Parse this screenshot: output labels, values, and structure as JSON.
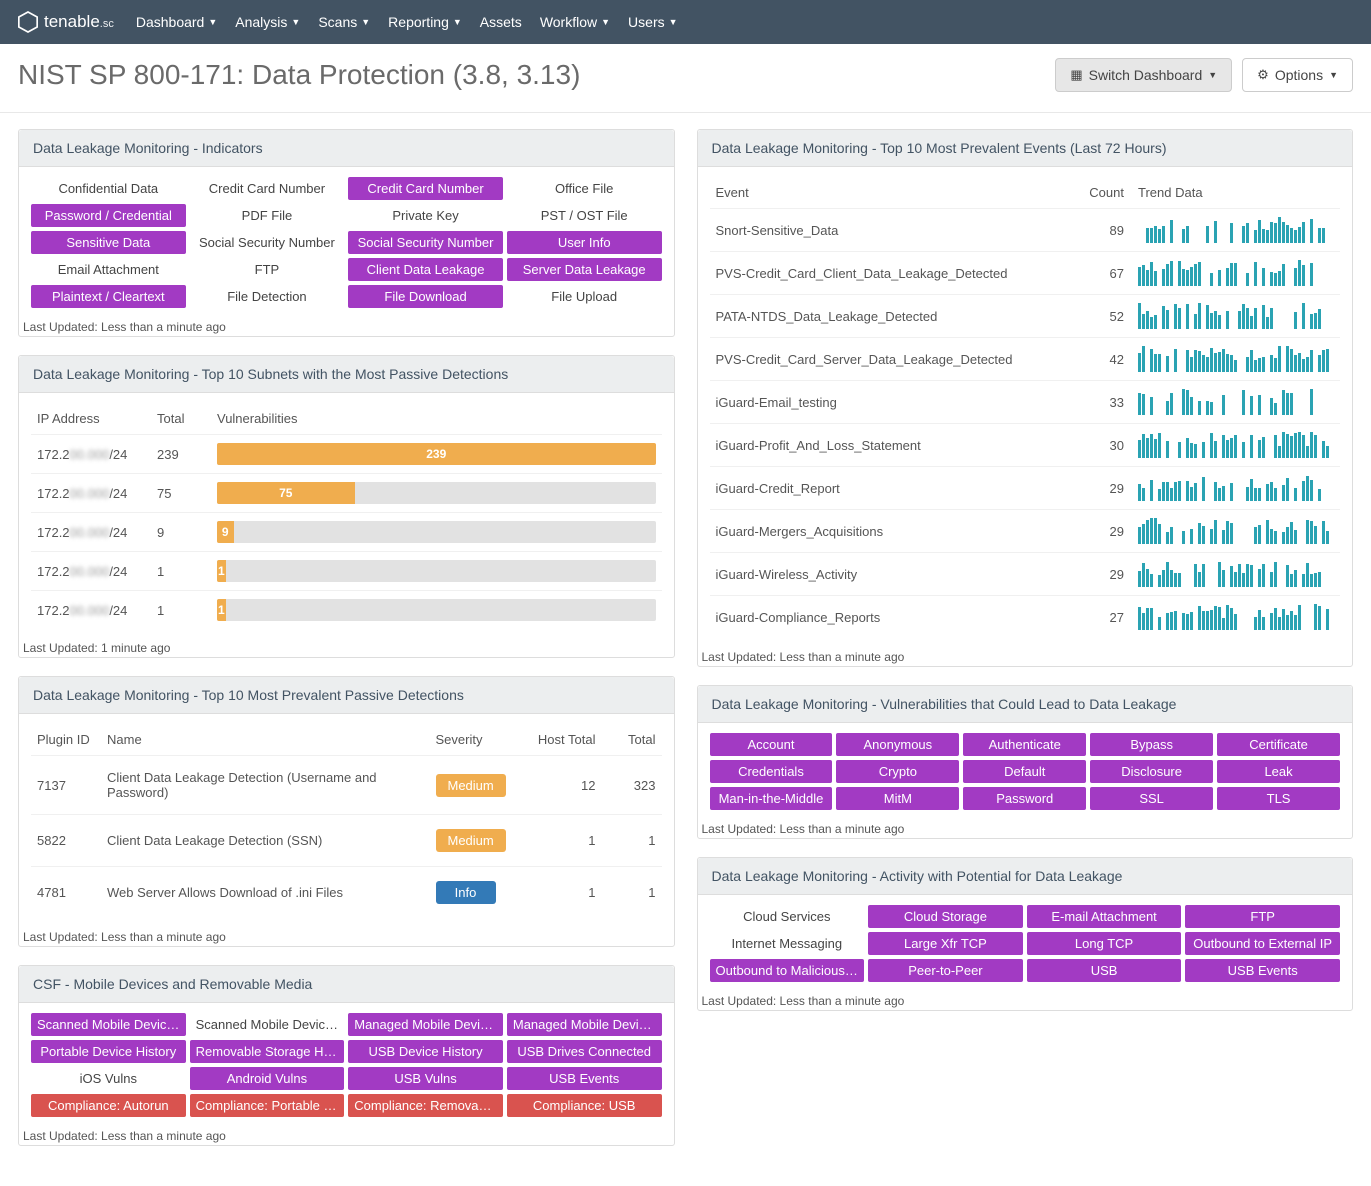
{
  "brand": {
    "name": "tenable",
    "suffix": ".sc"
  },
  "nav": [
    {
      "label": "Dashboard",
      "caret": true
    },
    {
      "label": "Analysis",
      "caret": true
    },
    {
      "label": "Scans",
      "caret": true
    },
    {
      "label": "Reporting",
      "caret": true
    },
    {
      "label": "Assets",
      "caret": false
    },
    {
      "label": "Workflow",
      "caret": true
    },
    {
      "label": "Users",
      "caret": true
    }
  ],
  "page_title": "NIST SP 800-171: Data Protection (3.8, 3.13)",
  "actions": {
    "switch": "Switch Dashboard",
    "options": "Options"
  },
  "colors": {
    "purple": "#a23ac3",
    "red": "#d9534f",
    "orange": "#f0ad4e",
    "blue": "#337ab7",
    "teal": "#2aa3b3",
    "grey_track": "#e2e2e2"
  },
  "panels": {
    "indicators": {
      "title": "Data Leakage Monitoring - Indicators",
      "updated": "Last Updated: Less than a minute ago",
      "cols": 4,
      "cells": [
        {
          "label": "Confidential Data",
          "style": "plain"
        },
        {
          "label": "Credit Card Number",
          "style": "plain"
        },
        {
          "label": "Credit Card Number",
          "style": "pill",
          "color": "#a23ac3"
        },
        {
          "label": "Office File",
          "style": "plain"
        },
        {
          "label": "Password / Credential",
          "style": "pill",
          "color": "#a23ac3"
        },
        {
          "label": "PDF File",
          "style": "plain"
        },
        {
          "label": "Private Key",
          "style": "plain"
        },
        {
          "label": "PST / OST File",
          "style": "plain"
        },
        {
          "label": "Sensitive Data",
          "style": "pill",
          "color": "#a23ac3"
        },
        {
          "label": "Social Security Number",
          "style": "plain"
        },
        {
          "label": "Social Security Number",
          "style": "pill",
          "color": "#a23ac3"
        },
        {
          "label": "User Info",
          "style": "pill",
          "color": "#a23ac3"
        },
        {
          "label": "Email Attachment",
          "style": "plain"
        },
        {
          "label": "FTP",
          "style": "plain"
        },
        {
          "label": "Client Data Leakage",
          "style": "pill",
          "color": "#a23ac3"
        },
        {
          "label": "Server Data Leakage",
          "style": "pill",
          "color": "#a23ac3"
        },
        {
          "label": "Plaintext / Cleartext",
          "style": "pill",
          "color": "#a23ac3"
        },
        {
          "label": "File Detection",
          "style": "plain"
        },
        {
          "label": "File Download",
          "style": "pill",
          "color": "#a23ac3"
        },
        {
          "label": "File Upload",
          "style": "plain"
        }
      ]
    },
    "subnets": {
      "title": "Data Leakage Monitoring - Top 10 Subnets with the Most Passive Detections",
      "updated": "Last Updated: 1 minute ago",
      "headers": {
        "ip": "IP Address",
        "total": "Total",
        "vuln": "Vulnerabilities"
      },
      "max": 239,
      "rows": [
        {
          "ip_prefix": "172.2",
          "ip_hidden": "00.000",
          "ip_suffix": "/24",
          "total": 239
        },
        {
          "ip_prefix": "172.2",
          "ip_hidden": "00.000",
          "ip_suffix": "/24",
          "total": 75
        },
        {
          "ip_prefix": "172.2",
          "ip_hidden": "00.000",
          "ip_suffix": "/24",
          "total": 9
        },
        {
          "ip_prefix": "172.2",
          "ip_hidden": "00.000",
          "ip_suffix": "/24",
          "total": 1
        },
        {
          "ip_prefix": "172.2",
          "ip_hidden": "00.000",
          "ip_suffix": "/24",
          "total": 1
        }
      ]
    },
    "passive": {
      "title": "Data Leakage Monitoring - Top 10 Most Prevalent Passive Detections",
      "updated": "Last Updated: Less than a minute ago",
      "headers": {
        "pid": "Plugin ID",
        "name": "Name",
        "sev": "Severity",
        "host": "Host Total",
        "total": "Total"
      },
      "rows": [
        {
          "pid": "7137",
          "name": "Client Data Leakage Detection (Username and Password)",
          "sev": "Medium",
          "sev_class": "medium",
          "host": 12,
          "total": 323
        },
        {
          "pid": "5822",
          "name": "Client Data Leakage Detection (SSN)",
          "sev": "Medium",
          "sev_class": "medium",
          "host": 1,
          "total": 1
        },
        {
          "pid": "4781",
          "name": "Web Server Allows Download of .ini Files",
          "sev": "Info",
          "sev_class": "info",
          "host": 1,
          "total": 1
        }
      ]
    },
    "csf": {
      "title": "CSF - Mobile Devices and Removable Media",
      "updated": "Last Updated: Less than a minute ago",
      "cols": 4,
      "cells": [
        {
          "label": "Scanned Mobile Devices",
          "style": "pill",
          "color": "#a23ac3"
        },
        {
          "label": "Scanned Mobile Device Vulns",
          "style": "plain"
        },
        {
          "label": "Managed Mobile Devices",
          "style": "pill",
          "color": "#a23ac3"
        },
        {
          "label": "Managed Mobile Device Vulns",
          "style": "pill",
          "color": "#a23ac3"
        },
        {
          "label": "Portable Device History",
          "style": "pill",
          "color": "#a23ac3"
        },
        {
          "label": "Removable Storage History",
          "style": "pill",
          "color": "#a23ac3"
        },
        {
          "label": "USB Device History",
          "style": "pill",
          "color": "#a23ac3"
        },
        {
          "label": "USB Drives Connected",
          "style": "pill",
          "color": "#a23ac3"
        },
        {
          "label": "iOS Vulns",
          "style": "plain"
        },
        {
          "label": "Android Vulns",
          "style": "pill",
          "color": "#a23ac3"
        },
        {
          "label": "USB Vulns",
          "style": "pill",
          "color": "#a23ac3"
        },
        {
          "label": "USB Events",
          "style": "pill",
          "color": "#a23ac3"
        },
        {
          "label": "Compliance: Autorun",
          "style": "pill",
          "color": "#d9534f"
        },
        {
          "label": "Compliance: Portable Devices",
          "style": "pill",
          "color": "#d9534f"
        },
        {
          "label": "Compliance: Removable Media",
          "style": "pill",
          "color": "#d9534f"
        },
        {
          "label": "Compliance: USB",
          "style": "pill",
          "color": "#d9534f"
        }
      ]
    },
    "events": {
      "title": "Data Leakage Monitoring - Top 10 Most Prevalent Events (Last 72 Hours)",
      "updated": "Last Updated: Less than a minute ago",
      "headers": {
        "event": "Event",
        "count": "Count",
        "trend": "Trend Data"
      },
      "rows": [
        {
          "event": "Snort-Sensitive_Data",
          "count": 89
        },
        {
          "event": "PVS-Credit_Card_Client_Data_Leakage_Detected",
          "count": 67
        },
        {
          "event": "PATA-NTDS_Data_Leakage_Detected",
          "count": 52
        },
        {
          "event": "PVS-Credit_Card_Server_Data_Leakage_Detected",
          "count": 42
        },
        {
          "event": "iGuard-Email_testing",
          "count": 33
        },
        {
          "event": "iGuard-Profit_And_Loss_Statement",
          "count": 30
        },
        {
          "event": "iGuard-Credit_Report",
          "count": 29
        },
        {
          "event": "iGuard-Mergers_Acquisitions",
          "count": 29
        },
        {
          "event": "iGuard-Wireless_Activity",
          "count": 29
        },
        {
          "event": "iGuard-Compliance_Reports",
          "count": 27
        }
      ]
    },
    "vulns": {
      "title": "Data Leakage Monitoring - Vulnerabilities that Could Lead to Data Leakage",
      "updated": "Last Updated: Less than a minute ago",
      "cols": 5,
      "cells": [
        {
          "label": "Account",
          "style": "pill",
          "color": "#a23ac3"
        },
        {
          "label": "Anonymous",
          "style": "pill",
          "color": "#a23ac3"
        },
        {
          "label": "Authenticate",
          "style": "pill",
          "color": "#a23ac3"
        },
        {
          "label": "Bypass",
          "style": "pill",
          "color": "#a23ac3"
        },
        {
          "label": "Certificate",
          "style": "pill",
          "color": "#a23ac3"
        },
        {
          "label": "Credentials",
          "style": "pill",
          "color": "#a23ac3"
        },
        {
          "label": "Crypto",
          "style": "pill",
          "color": "#a23ac3"
        },
        {
          "label": "Default",
          "style": "pill",
          "color": "#a23ac3"
        },
        {
          "label": "Disclosure",
          "style": "pill",
          "color": "#a23ac3"
        },
        {
          "label": "Leak",
          "style": "pill",
          "color": "#a23ac3"
        },
        {
          "label": "Man-in-the-Middle",
          "style": "pill",
          "color": "#a23ac3"
        },
        {
          "label": "MitM",
          "style": "pill",
          "color": "#a23ac3"
        },
        {
          "label": "Password",
          "style": "pill",
          "color": "#a23ac3"
        },
        {
          "label": "SSL",
          "style": "pill",
          "color": "#a23ac3"
        },
        {
          "label": "TLS",
          "style": "pill",
          "color": "#a23ac3"
        }
      ]
    },
    "activity": {
      "title": "Data Leakage Monitoring - Activity with Potential for Data Leakage",
      "updated": "Last Updated: Less than a minute ago",
      "cols": 4,
      "cells": [
        {
          "label": "Cloud Services",
          "style": "plain"
        },
        {
          "label": "Cloud Storage",
          "style": "pill",
          "color": "#a23ac3"
        },
        {
          "label": "E-mail Attachment",
          "style": "pill",
          "color": "#a23ac3"
        },
        {
          "label": "FTP",
          "style": "pill",
          "color": "#a23ac3"
        },
        {
          "label": "Internet Messaging",
          "style": "plain"
        },
        {
          "label": "Large Xfr TCP",
          "style": "pill",
          "color": "#a23ac3"
        },
        {
          "label": "Long TCP",
          "style": "pill",
          "color": "#a23ac3"
        },
        {
          "label": "Outbound to External IP",
          "style": "pill",
          "color": "#a23ac3"
        },
        {
          "label": "Outbound to Malicious IP",
          "style": "pill",
          "color": "#a23ac3"
        },
        {
          "label": "Peer-to-Peer",
          "style": "pill",
          "color": "#a23ac3"
        },
        {
          "label": "USB",
          "style": "pill",
          "color": "#a23ac3"
        },
        {
          "label": "USB Events",
          "style": "pill",
          "color": "#a23ac3"
        }
      ]
    }
  }
}
